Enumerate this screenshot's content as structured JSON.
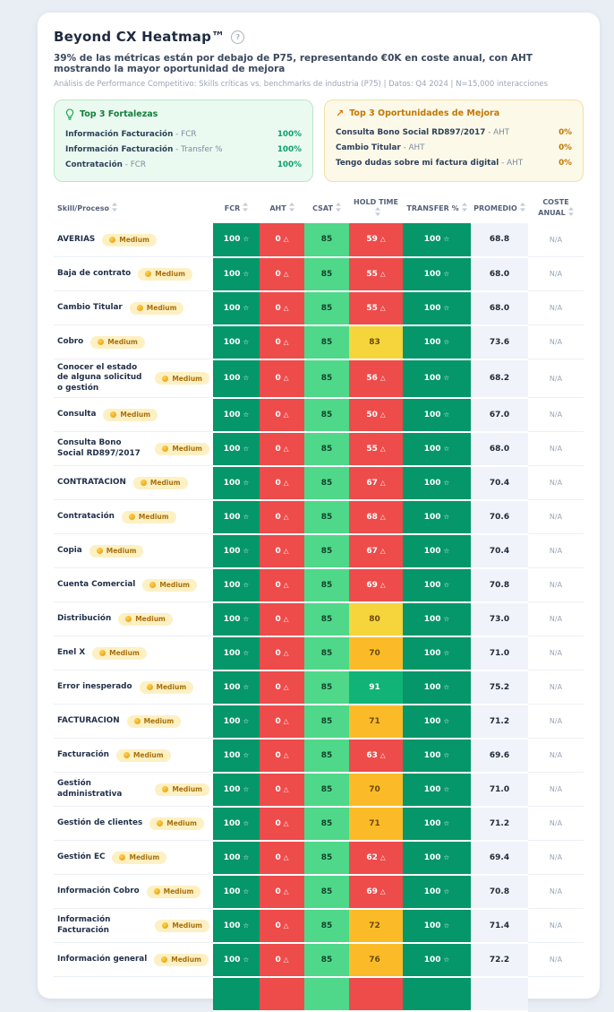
{
  "page": {
    "title": "Beyond CX Heatmap™",
    "headline": "39% de las métricas están por debajo de P75, representando €0K en coste anual, con AHT mostrando la mayor oportunidad de mejora",
    "meta": "Análisis de Performance Competitivo: Skills críticas vs. benchmarks de industria (P75) | Datos: Q4 2024 | N=15,000 interacciones"
  },
  "strengths_card": {
    "title": "Top 3 Fortalezas",
    "items": [
      {
        "label": "Información Facturación",
        "metric": "FCR",
        "value": "100%"
      },
      {
        "label": "Información Facturación",
        "metric": "Transfer %",
        "value": "100%"
      },
      {
        "label": "Contratación",
        "metric": "FCR",
        "value": "100%"
      }
    ]
  },
  "opportunities_card": {
    "title": "Top 3 Oportunidades de Mejora",
    "items": [
      {
        "label": "Consulta Bono Social RD897/2017",
        "metric": "AHT",
        "value": "0%"
      },
      {
        "label": "Cambio Titular",
        "metric": "AHT",
        "value": "0%"
      },
      {
        "label": "Tengo dudas sobre mi factura digital",
        "metric": "AHT",
        "value": "0%"
      }
    ]
  },
  "icons": {
    "star": "☆",
    "warn": "△",
    "trend": "↗",
    "help": "?"
  },
  "table": {
    "columns": [
      "Skill/Proceso",
      "FCR",
      "AHT",
      "CSAT",
      "HOLD TIME",
      "TRANSFER %",
      "PROMEDIO",
      "COSTE ANUAL"
    ],
    "badge_label": "Medium",
    "rows": [
      {
        "skill": "AVERIAS",
        "badge": "Medium",
        "fcr": "100",
        "aht": "0",
        "csat": "85",
        "hold": "59",
        "hold_level": "red",
        "transfer": "100",
        "promedio": "68.8",
        "coste": "N/A"
      },
      {
        "skill": "Baja de contrato",
        "badge": "Medium",
        "fcr": "100",
        "aht": "0",
        "csat": "85",
        "hold": "55",
        "hold_level": "red",
        "transfer": "100",
        "promedio": "68.0",
        "coste": "N/A"
      },
      {
        "skill": "Cambio Titular",
        "badge": "Medium",
        "fcr": "100",
        "aht": "0",
        "csat": "85",
        "hold": "55",
        "hold_level": "red",
        "transfer": "100",
        "promedio": "68.0",
        "coste": "N/A"
      },
      {
        "skill": "Cobro",
        "badge": "Medium",
        "fcr": "100",
        "aht": "0",
        "csat": "85",
        "hold": "83",
        "hold_level": "yellow",
        "transfer": "100",
        "promedio": "73.6",
        "coste": "N/A"
      },
      {
        "skill": "Conocer el estado de alguna solicitud o gestión",
        "badge": "Medium",
        "fcr": "100",
        "aht": "0",
        "csat": "85",
        "hold": "56",
        "hold_level": "red",
        "transfer": "100",
        "promedio": "68.2",
        "coste": "N/A"
      },
      {
        "skill": "Consulta",
        "badge": "Medium",
        "fcr": "100",
        "aht": "0",
        "csat": "85",
        "hold": "50",
        "hold_level": "red",
        "transfer": "100",
        "promedio": "67.0",
        "coste": "N/A"
      },
      {
        "skill": "Consulta Bono Social RD897/2017",
        "badge": "Medium",
        "fcr": "100",
        "aht": "0",
        "csat": "85",
        "hold": "55",
        "hold_level": "red",
        "transfer": "100",
        "promedio": "68.0",
        "coste": "N/A"
      },
      {
        "skill": "CONTRATACION",
        "badge": "Medium",
        "fcr": "100",
        "aht": "0",
        "csat": "85",
        "hold": "67",
        "hold_level": "red",
        "transfer": "100",
        "promedio": "70.4",
        "coste": "N/A"
      },
      {
        "skill": "Contratación",
        "badge": "Medium",
        "fcr": "100",
        "aht": "0",
        "csat": "85",
        "hold": "68",
        "hold_level": "red",
        "transfer": "100",
        "promedio": "70.6",
        "coste": "N/A"
      },
      {
        "skill": "Copia",
        "badge": "Medium",
        "fcr": "100",
        "aht": "0",
        "csat": "85",
        "hold": "67",
        "hold_level": "red",
        "transfer": "100",
        "promedio": "70.4",
        "coste": "N/A"
      },
      {
        "skill": "Cuenta Comercial",
        "badge": "Medium",
        "fcr": "100",
        "aht": "0",
        "csat": "85",
        "hold": "69",
        "hold_level": "red",
        "transfer": "100",
        "promedio": "70.8",
        "coste": "N/A"
      },
      {
        "skill": "Distribución",
        "badge": "Medium",
        "fcr": "100",
        "aht": "0",
        "csat": "85",
        "hold": "80",
        "hold_level": "yellow",
        "transfer": "100",
        "promedio": "73.0",
        "coste": "N/A"
      },
      {
        "skill": "Enel X",
        "badge": "Medium",
        "fcr": "100",
        "aht": "0",
        "csat": "85",
        "hold": "70",
        "hold_level": "amber",
        "transfer": "100",
        "promedio": "71.0",
        "coste": "N/A"
      },
      {
        "skill": "Error inesperado",
        "badge": "Medium",
        "fcr": "100",
        "aht": "0",
        "csat": "85",
        "hold": "91",
        "hold_level": "green",
        "transfer": "100",
        "promedio": "75.2",
        "coste": "N/A"
      },
      {
        "skill": "FACTURACION",
        "badge": "Medium",
        "fcr": "100",
        "aht": "0",
        "csat": "85",
        "hold": "71",
        "hold_level": "amber",
        "transfer": "100",
        "promedio": "71.2",
        "coste": "N/A"
      },
      {
        "skill": "Facturación",
        "badge": "Medium",
        "fcr": "100",
        "aht": "0",
        "csat": "85",
        "hold": "63",
        "hold_level": "red",
        "transfer": "100",
        "promedio": "69.6",
        "coste": "N/A"
      },
      {
        "skill": "Gestión administrativa",
        "badge": "Medium",
        "fcr": "100",
        "aht": "0",
        "csat": "85",
        "hold": "70",
        "hold_level": "amber",
        "transfer": "100",
        "promedio": "71.0",
        "coste": "N/A"
      },
      {
        "skill": "Gestión de clientes",
        "badge": "Medium",
        "fcr": "100",
        "aht": "0",
        "csat": "85",
        "hold": "71",
        "hold_level": "amber",
        "transfer": "100",
        "promedio": "71.2",
        "coste": "N/A"
      },
      {
        "skill": "Gestión EC",
        "badge": "Medium",
        "fcr": "100",
        "aht": "0",
        "csat": "85",
        "hold": "62",
        "hold_level": "red",
        "transfer": "100",
        "promedio": "69.4",
        "coste": "N/A"
      },
      {
        "skill": "Información Cobro",
        "badge": "Medium",
        "fcr": "100",
        "aht": "0",
        "csat": "85",
        "hold": "69",
        "hold_level": "red",
        "transfer": "100",
        "promedio": "70.8",
        "coste": "N/A"
      },
      {
        "skill": "Información Facturación",
        "badge": "Medium",
        "fcr": "100",
        "aht": "0",
        "csat": "85",
        "hold": "72",
        "hold_level": "amber",
        "transfer": "100",
        "promedio": "71.4",
        "coste": "N/A"
      },
      {
        "skill": "Información general",
        "badge": "Medium",
        "fcr": "100",
        "aht": "0",
        "csat": "85",
        "hold": "76",
        "hold_level": "amber",
        "transfer": "100",
        "promedio": "72.2",
        "coste": "N/A"
      },
      {
        "skill": "",
        "badge": null,
        "fcr": "",
        "aht": "",
        "csat": "",
        "hold": "",
        "hold_level": "red",
        "transfer": "",
        "promedio": "",
        "coste": "",
        "partial": true
      }
    ]
  },
  "colors": {
    "page_bg": "#e9edf4",
    "card_bg": "#ffffff",
    "green_dark": "#059669",
    "green_light": "#4fd88a",
    "green_mid": "#12b377",
    "red": "#ee4b4b",
    "yellow": "#f6d43c",
    "amber": "#fbbb28",
    "promedio_bg": "#f0f3f9",
    "badge_bg": "#fdf0c3",
    "badge_text": "#a8700d",
    "strengths_accent": "#15803d",
    "opportunities_accent": "#c27803"
  }
}
